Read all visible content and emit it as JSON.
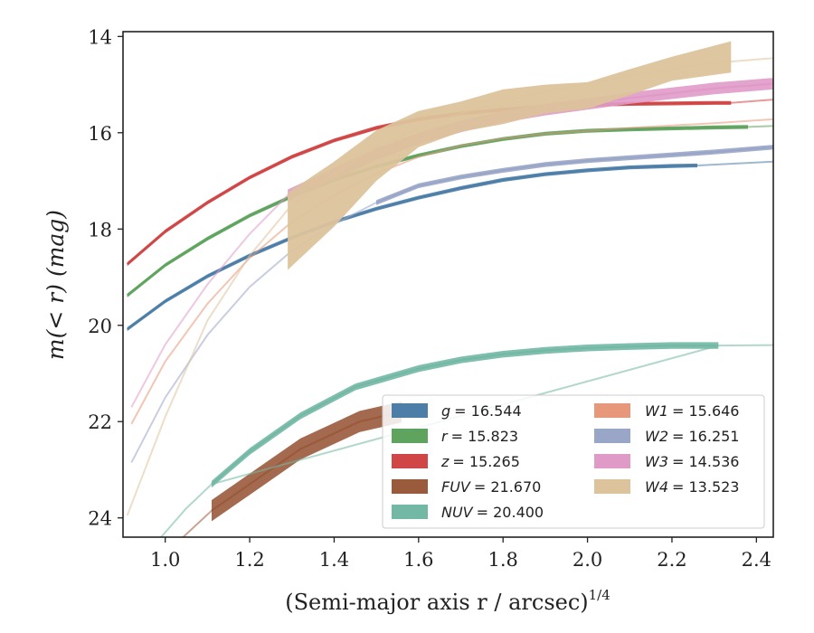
{
  "chart_data": {
    "type": "line",
    "xlabel": "(Semi-major axis r / arcsec)",
    "xlabel_exponent": "1/4",
    "ylabel": "m(< r) (mag)",
    "xlim": [
      0.9,
      2.44
    ],
    "ylim": [
      24.4,
      13.9
    ],
    "y_inverted": true,
    "grid": false,
    "legend_position": "lower-right",
    "x_ticks": [
      "1.0",
      "1.2",
      "1.4",
      "1.6",
      "1.8",
      "2.0",
      "2.2",
      "2.4"
    ],
    "y_ticks": [
      "14",
      "16",
      "18",
      "20",
      "22",
      "24"
    ],
    "series": [
      {
        "name": "g = 16.544",
        "label_var": "g",
        "label_value": "= 16.544",
        "color": "#4c7ea8",
        "core": [
          [
            0.91,
            20.08
          ],
          [
            1.0,
            19.5
          ],
          [
            1.1,
            18.98
          ],
          [
            1.2,
            18.55
          ],
          [
            1.3,
            18.18
          ],
          [
            1.4,
            17.85
          ],
          [
            1.5,
            17.58
          ],
          [
            1.6,
            17.35
          ],
          [
            1.7,
            17.15
          ],
          [
            1.8,
            16.98
          ],
          [
            1.9,
            16.86
          ],
          [
            2.0,
            16.78
          ],
          [
            2.1,
            16.72
          ],
          [
            2.2,
            16.69
          ],
          [
            2.26,
            16.68
          ]
        ],
        "tail": [
          [
            2.26,
            16.68
          ],
          [
            2.35,
            16.64
          ],
          [
            2.44,
            16.6
          ]
        ],
        "band": 0.04
      },
      {
        "name": "r = 15.823",
        "label_var": "r",
        "label_value": "= 15.823",
        "color": "#5ea35e",
        "core": [
          [
            0.91,
            19.38
          ],
          [
            1.0,
            18.75
          ],
          [
            1.1,
            18.2
          ],
          [
            1.2,
            17.72
          ],
          [
            1.3,
            17.32
          ],
          [
            1.4,
            16.98
          ],
          [
            1.5,
            16.7
          ],
          [
            1.6,
            16.47
          ],
          [
            1.7,
            16.28
          ],
          [
            1.8,
            16.13
          ],
          [
            1.9,
            16.02
          ],
          [
            2.0,
            15.96
          ],
          [
            2.1,
            15.93
          ],
          [
            2.2,
            15.91
          ],
          [
            2.3,
            15.89
          ],
          [
            2.38,
            15.88
          ]
        ],
        "tail": [
          [
            2.38,
            15.88
          ],
          [
            2.44,
            15.86
          ]
        ],
        "band": 0.04
      },
      {
        "name": "z = 15.265",
        "label_var": "z",
        "label_value": "= 15.265",
        "color": "#d04545",
        "core": [
          [
            0.91,
            18.73
          ],
          [
            1.0,
            18.05
          ],
          [
            1.1,
            17.45
          ],
          [
            1.2,
            16.93
          ],
          [
            1.3,
            16.5
          ],
          [
            1.4,
            16.16
          ],
          [
            1.5,
            15.9
          ],
          [
            1.6,
            15.72
          ],
          [
            1.7,
            15.6
          ],
          [
            1.8,
            15.52
          ],
          [
            1.9,
            15.46
          ],
          [
            2.0,
            15.42
          ],
          [
            2.1,
            15.4
          ],
          [
            2.2,
            15.39
          ],
          [
            2.3,
            15.38
          ],
          [
            2.34,
            15.38
          ]
        ],
        "tail": [
          [
            2.34,
            15.38
          ],
          [
            2.44,
            15.31
          ]
        ],
        "band": 0.04
      },
      {
        "name": "FUV = 21.670",
        "label_var": "FUV",
        "label_value": "= 21.670",
        "color": "#9a5a3c",
        "core": [
          [
            1.11,
            23.85
          ],
          [
            1.2,
            23.3
          ],
          [
            1.32,
            22.57
          ],
          [
            1.46,
            22.0
          ],
          [
            1.56,
            21.8
          ]
        ],
        "tail": [
          [
            0.96,
            25.0
          ],
          [
            1.03,
            24.5
          ],
          [
            1.11,
            23.85
          ]
        ],
        "band": 0.22
      },
      {
        "name": "NUV = 20.400",
        "label_var": "NUV",
        "label_value": "= 20.400",
        "color": "#72b8a4",
        "core": [
          [
            1.11,
            23.3
          ],
          [
            1.2,
            22.62
          ],
          [
            1.32,
            21.88
          ],
          [
            1.45,
            21.28
          ],
          [
            1.6,
            20.9
          ],
          [
            1.7,
            20.72
          ],
          [
            1.8,
            20.6
          ],
          [
            1.9,
            20.52
          ],
          [
            2.0,
            20.47
          ],
          [
            2.1,
            20.44
          ],
          [
            2.2,
            20.42
          ],
          [
            2.31,
            20.42
          ]
        ],
        "tail": [
          [
            0.98,
            24.5
          ],
          [
            1.05,
            23.8
          ],
          [
            1.11,
            23.3
          ],
          [
            2.31,
            20.42
          ],
          [
            2.44,
            20.41
          ]
        ],
        "band": 0.07
      },
      {
        "name": "W1 = 15.646",
        "label_var": "W1",
        "label_value": "= 15.646",
        "color": "#e8987a",
        "core": [],
        "tail": [
          [
            0.92,
            22.05
          ],
          [
            1.0,
            20.75
          ],
          [
            1.1,
            19.55
          ],
          [
            1.2,
            18.6
          ],
          [
            1.3,
            17.85
          ],
          [
            1.4,
            17.3
          ],
          [
            1.5,
            16.85
          ],
          [
            1.6,
            16.5
          ],
          [
            1.7,
            16.27
          ],
          [
            1.8,
            16.12
          ],
          [
            1.9,
            16.02
          ],
          [
            2.0,
            15.96
          ],
          [
            2.1,
            15.9
          ],
          [
            2.2,
            15.85
          ],
          [
            2.3,
            15.8
          ],
          [
            2.44,
            15.72
          ]
        ],
        "band": 0
      },
      {
        "name": "W2 = 16.251",
        "label_var": "W2",
        "label_value": "= 16.251",
        "color": "#9aa6c8",
        "core": [
          [
            1.5,
            17.45
          ],
          [
            1.6,
            17.1
          ],
          [
            1.7,
            16.92
          ],
          [
            1.8,
            16.78
          ],
          [
            1.9,
            16.66
          ],
          [
            2.0,
            16.58
          ],
          [
            2.1,
            16.52
          ],
          [
            2.2,
            16.46
          ],
          [
            2.3,
            16.4
          ],
          [
            2.44,
            16.3
          ]
        ],
        "tail": [
          [
            0.92,
            22.85
          ],
          [
            1.0,
            21.5
          ],
          [
            1.1,
            20.2
          ],
          [
            1.2,
            19.2
          ],
          [
            1.3,
            18.45
          ],
          [
            1.4,
            17.9
          ],
          [
            1.5,
            17.45
          ]
        ],
        "band": 0.05
      },
      {
        "name": "W3 = 14.536",
        "label_var": "W3",
        "label_value": "= 14.536",
        "color": "#e09ac8",
        "core": [
          [
            1.29,
            17.3
          ],
          [
            1.4,
            16.85
          ],
          [
            1.5,
            16.45
          ],
          [
            1.6,
            16.12
          ],
          [
            1.7,
            15.87
          ],
          [
            1.8,
            15.67
          ],
          [
            1.9,
            15.52
          ],
          [
            2.0,
            15.4
          ],
          [
            2.1,
            15.28
          ],
          [
            2.2,
            15.18
          ],
          [
            2.3,
            15.08
          ],
          [
            2.44,
            14.98
          ]
        ],
        "tail": [
          [
            0.92,
            21.7
          ],
          [
            1.0,
            20.4
          ],
          [
            1.1,
            19.15
          ],
          [
            1.2,
            18.1
          ],
          [
            1.29,
            17.3
          ]
        ],
        "band": 0.12
      },
      {
        "name": "W4 = 13.523",
        "label_var": "W4",
        "label_value": "= 13.523",
        "color": "#dcc39c",
        "core": [],
        "tail": [
          [
            0.91,
            23.95
          ],
          [
            1.0,
            21.9
          ],
          [
            1.1,
            19.9
          ],
          [
            1.2,
            18.55
          ],
          [
            1.29,
            17.6
          ],
          [
            1.4,
            16.85
          ],
          [
            1.5,
            16.3
          ],
          [
            1.6,
            15.9
          ],
          [
            1.7,
            15.6
          ],
          [
            1.8,
            15.35
          ],
          [
            1.9,
            15.15
          ],
          [
            2.0,
            14.98
          ],
          [
            2.1,
            14.82
          ],
          [
            2.2,
            14.68
          ],
          [
            2.3,
            14.55
          ],
          [
            2.44,
            14.45
          ]
        ],
        "band": 0,
        "bandUpper": [
          [
            1.29,
            17.25
          ],
          [
            1.4,
            16.6
          ],
          [
            1.5,
            15.95
          ],
          [
            1.6,
            15.55
          ],
          [
            1.7,
            15.35
          ],
          [
            1.8,
            15.1
          ],
          [
            1.9,
            15.0
          ],
          [
            2.0,
            14.95
          ],
          [
            2.1,
            14.68
          ],
          [
            2.2,
            14.42
          ],
          [
            2.34,
            14.1
          ]
        ],
        "bandLower": [
          [
            1.29,
            18.85
          ],
          [
            1.4,
            17.95
          ],
          [
            1.5,
            17.0
          ],
          [
            1.6,
            16.3
          ],
          [
            1.7,
            15.98
          ],
          [
            1.8,
            15.82
          ],
          [
            1.9,
            15.6
          ],
          [
            2.0,
            15.5
          ],
          [
            2.1,
            15.22
          ],
          [
            2.2,
            14.92
          ],
          [
            2.34,
            14.75
          ]
        ]
      }
    ]
  }
}
